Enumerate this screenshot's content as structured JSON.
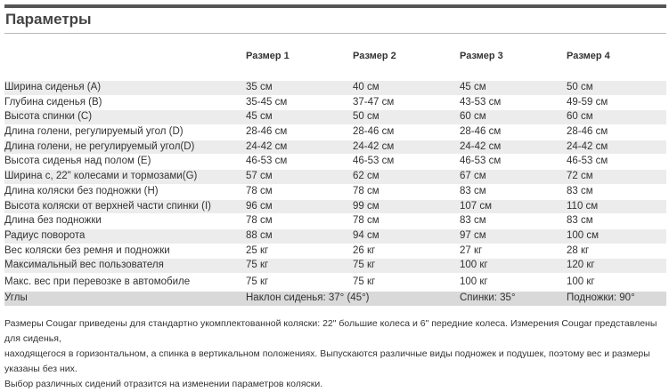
{
  "header": {
    "title": "Параметры"
  },
  "table": {
    "columns": [
      "Размер 1",
      "Размер 2",
      "Размер 3",
      "Размер 4"
    ],
    "rows": [
      [
        "Ширина сиденья (A)",
        "35 см",
        "40 см",
        "45 см",
        "50 см"
      ],
      [
        "Глубина сиденья (B)",
        "35-45  см",
        "37-47 см",
        "43-53 см",
        "49-59 см"
      ],
      [
        "Высота спинки (C)",
        "45 см",
        "50 см",
        "60 см",
        "60 см"
      ],
      [
        "Длина голени, регулируемый угол (D)",
        "28-46 см",
        "28-46 см",
        "28-46 см",
        "28-46 см"
      ],
      [
        "Длина голени, не регулируемый угол(D)",
        "24-42 см",
        "24-42 см",
        "24-42  см",
        "24-42 см"
      ],
      [
        "Высота сиденья над полом (E)",
        "46-53 см",
        "46-53 см",
        "46-53 см",
        "46-53 см"
      ],
      [
        "Ширина с, 22\" колесами и тормозами(G)",
        "57 см",
        "62 см",
        "67 см",
        "72 см"
      ],
      [
        "Длина коляски без подножки (H)",
        "78 см",
        "78 см",
        "83 см",
        "83 см"
      ],
      [
        "Высота коляски от верхней части спинки (I)",
        "96 см",
        "99 см",
        "107 см",
        "110 см"
      ],
      [
        "Длина без подножки",
        "78 см",
        "78 см",
        "83 см",
        "83 см"
      ],
      [
        "Радиус поворота",
        "88 см",
        "94 см",
        "97 см",
        "100 см"
      ],
      [
        "Вес коляски без ремня и подножки",
        "25 кг",
        "26 кг",
        "27 кг",
        "28 кг"
      ],
      [
        "Максимальный вес пользователя",
        "75 кг",
        "75 кг",
        "100 кг",
        "120 кг"
      ],
      [
        "Макс. вес при перевозке в автомобиле",
        "75 кг",
        "75 кг",
        "100 кг",
        "100 кг"
      ]
    ],
    "angles": {
      "label": "Углы",
      "seat": "Наклон сиденья: 37° (45°)",
      "back": "Спинки: 35°",
      "footrest": "Подножки: 90°"
    }
  },
  "footnote": [
    "Размеры Cougar приведены для стандартно укомплектованной коляски: 22\" большие колеса и 6\" передние колеса. Измерения Cougar представлены для сиденья,",
    "находящегося в горизонтальном, а спинка в вертикальном положениях. Выпускаются различные виды подножек и подушек, поэтому вес и размеры указаны без них.",
    "Выбор различных сидений отразится на изменении параметров коляски."
  ]
}
